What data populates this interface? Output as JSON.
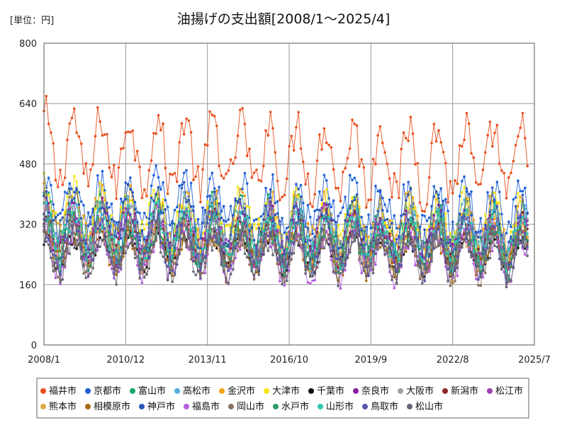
{
  "chart_data": {
    "type": "line",
    "title": "油揚げの支出額[2008/1～2025/4]",
    "unit_label": "[単位：円]",
    "xlabel": "",
    "ylabel": "",
    "ylim": [
      0,
      800
    ],
    "yticks": [
      0,
      160,
      320,
      480,
      640,
      800
    ],
    "xlim": [
      "2008-01",
      "2025-07"
    ],
    "xtick_labels": [
      "2008/1",
      "2010/12",
      "2013/11",
      "2016/10",
      "2019/9",
      "2022/8",
      "2025/7"
    ],
    "grid": true,
    "legend_position": "bottom",
    "series": [
      {
        "name": "福井市",
        "color": "#e8501e",
        "base": 520,
        "amp": 90,
        "noise": 55,
        "trend": -40
      },
      {
        "name": "京都市",
        "color": "#1f5fd6",
        "base": 380,
        "amp": 60,
        "noise": 45,
        "trend": -20
      },
      {
        "name": "富山市",
        "color": "#1aa36b",
        "base": 330,
        "amp": 55,
        "noise": 40,
        "trend": -30
      },
      {
        "name": "高松市",
        "color": "#4fb0e0",
        "base": 320,
        "amp": 55,
        "noise": 40,
        "trend": -20
      },
      {
        "name": "金沢市",
        "color": "#f2a41c",
        "base": 340,
        "amp": 55,
        "noise": 45,
        "trend": -30
      },
      {
        "name": "大津市",
        "color": "#f5e61a",
        "base": 350,
        "amp": 60,
        "noise": 50,
        "trend": -40
      },
      {
        "name": "千葉市",
        "color": "#111111",
        "base": 250,
        "amp": 40,
        "noise": 25,
        "trend": -10
      },
      {
        "name": "奈良市",
        "color": "#8a1ea0",
        "base": 300,
        "amp": 55,
        "noise": 40,
        "trend": -20
      },
      {
        "name": "大阪市",
        "color": "#9aa0a6",
        "base": 310,
        "amp": 50,
        "noise": 40,
        "trend": -20
      },
      {
        "name": "新潟市",
        "color": "#8b2a2a",
        "base": 290,
        "amp": 50,
        "noise": 35,
        "trend": -20
      },
      {
        "name": "松江市",
        "color": "#9b3fb5",
        "base": 300,
        "amp": 50,
        "noise": 40,
        "trend": -20
      },
      {
        "name": "熊本市",
        "color": "#e0a84a",
        "base": 270,
        "amp": 45,
        "noise": 35,
        "trend": -20
      },
      {
        "name": "相模原市",
        "color": "#a86a10",
        "base": 260,
        "amp": 45,
        "noise": 35,
        "trend": -20
      },
      {
        "name": "神戸市",
        "color": "#2a56b8",
        "base": 340,
        "amp": 55,
        "noise": 45,
        "trend": -20
      },
      {
        "name": "福島市",
        "color": "#b45ee0",
        "base": 250,
        "amp": 50,
        "noise": 40,
        "trend": -20
      },
      {
        "name": "岡山市",
        "color": "#8a7060",
        "base": 260,
        "amp": 50,
        "noise": 40,
        "trend": -20
      },
      {
        "name": "水戸市",
        "color": "#2a9a6a",
        "base": 280,
        "amp": 50,
        "noise": 40,
        "trend": -20
      },
      {
        "name": "山形市",
        "color": "#2ac8b0",
        "base": 300,
        "amp": 55,
        "noise": 40,
        "trend": -20
      },
      {
        "name": "鳥取市",
        "color": "#5555aa",
        "base": 270,
        "amp": 50,
        "noise": 40,
        "trend": -20
      },
      {
        "name": "松山市",
        "color": "#666677",
        "base": 240,
        "amp": 45,
        "noise": 35,
        "trend": -10
      }
    ]
  }
}
